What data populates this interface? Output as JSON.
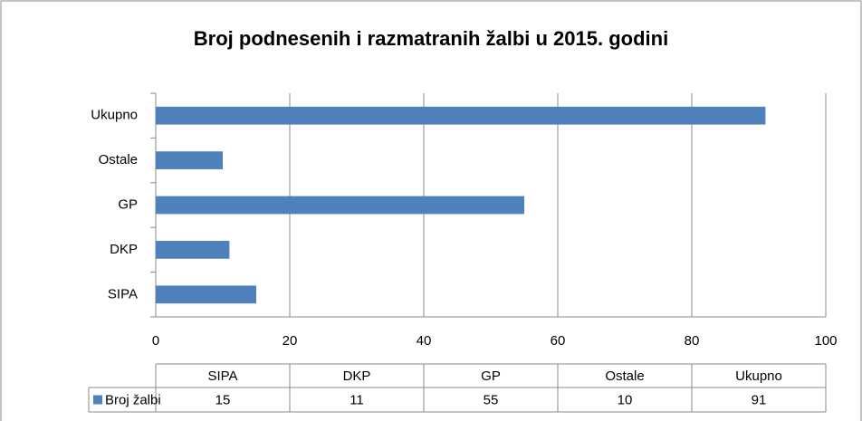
{
  "chart_data": {
    "type": "bar",
    "orientation": "horizontal",
    "title": "Broj podnesenih i razmatranih žalbi u 2015. godini",
    "categories": [
      "SIPA",
      "DKP",
      "GP",
      "Ostale",
      "Ukupno"
    ],
    "series": [
      {
        "name": "Broj žalbi",
        "color": "#4f81bd",
        "values": [
          15,
          11,
          55,
          10,
          91
        ]
      }
    ],
    "xlim": [
      0,
      100
    ],
    "xticks": [
      0,
      20,
      40,
      60,
      80,
      100
    ],
    "grid": true,
    "data_table": true
  }
}
